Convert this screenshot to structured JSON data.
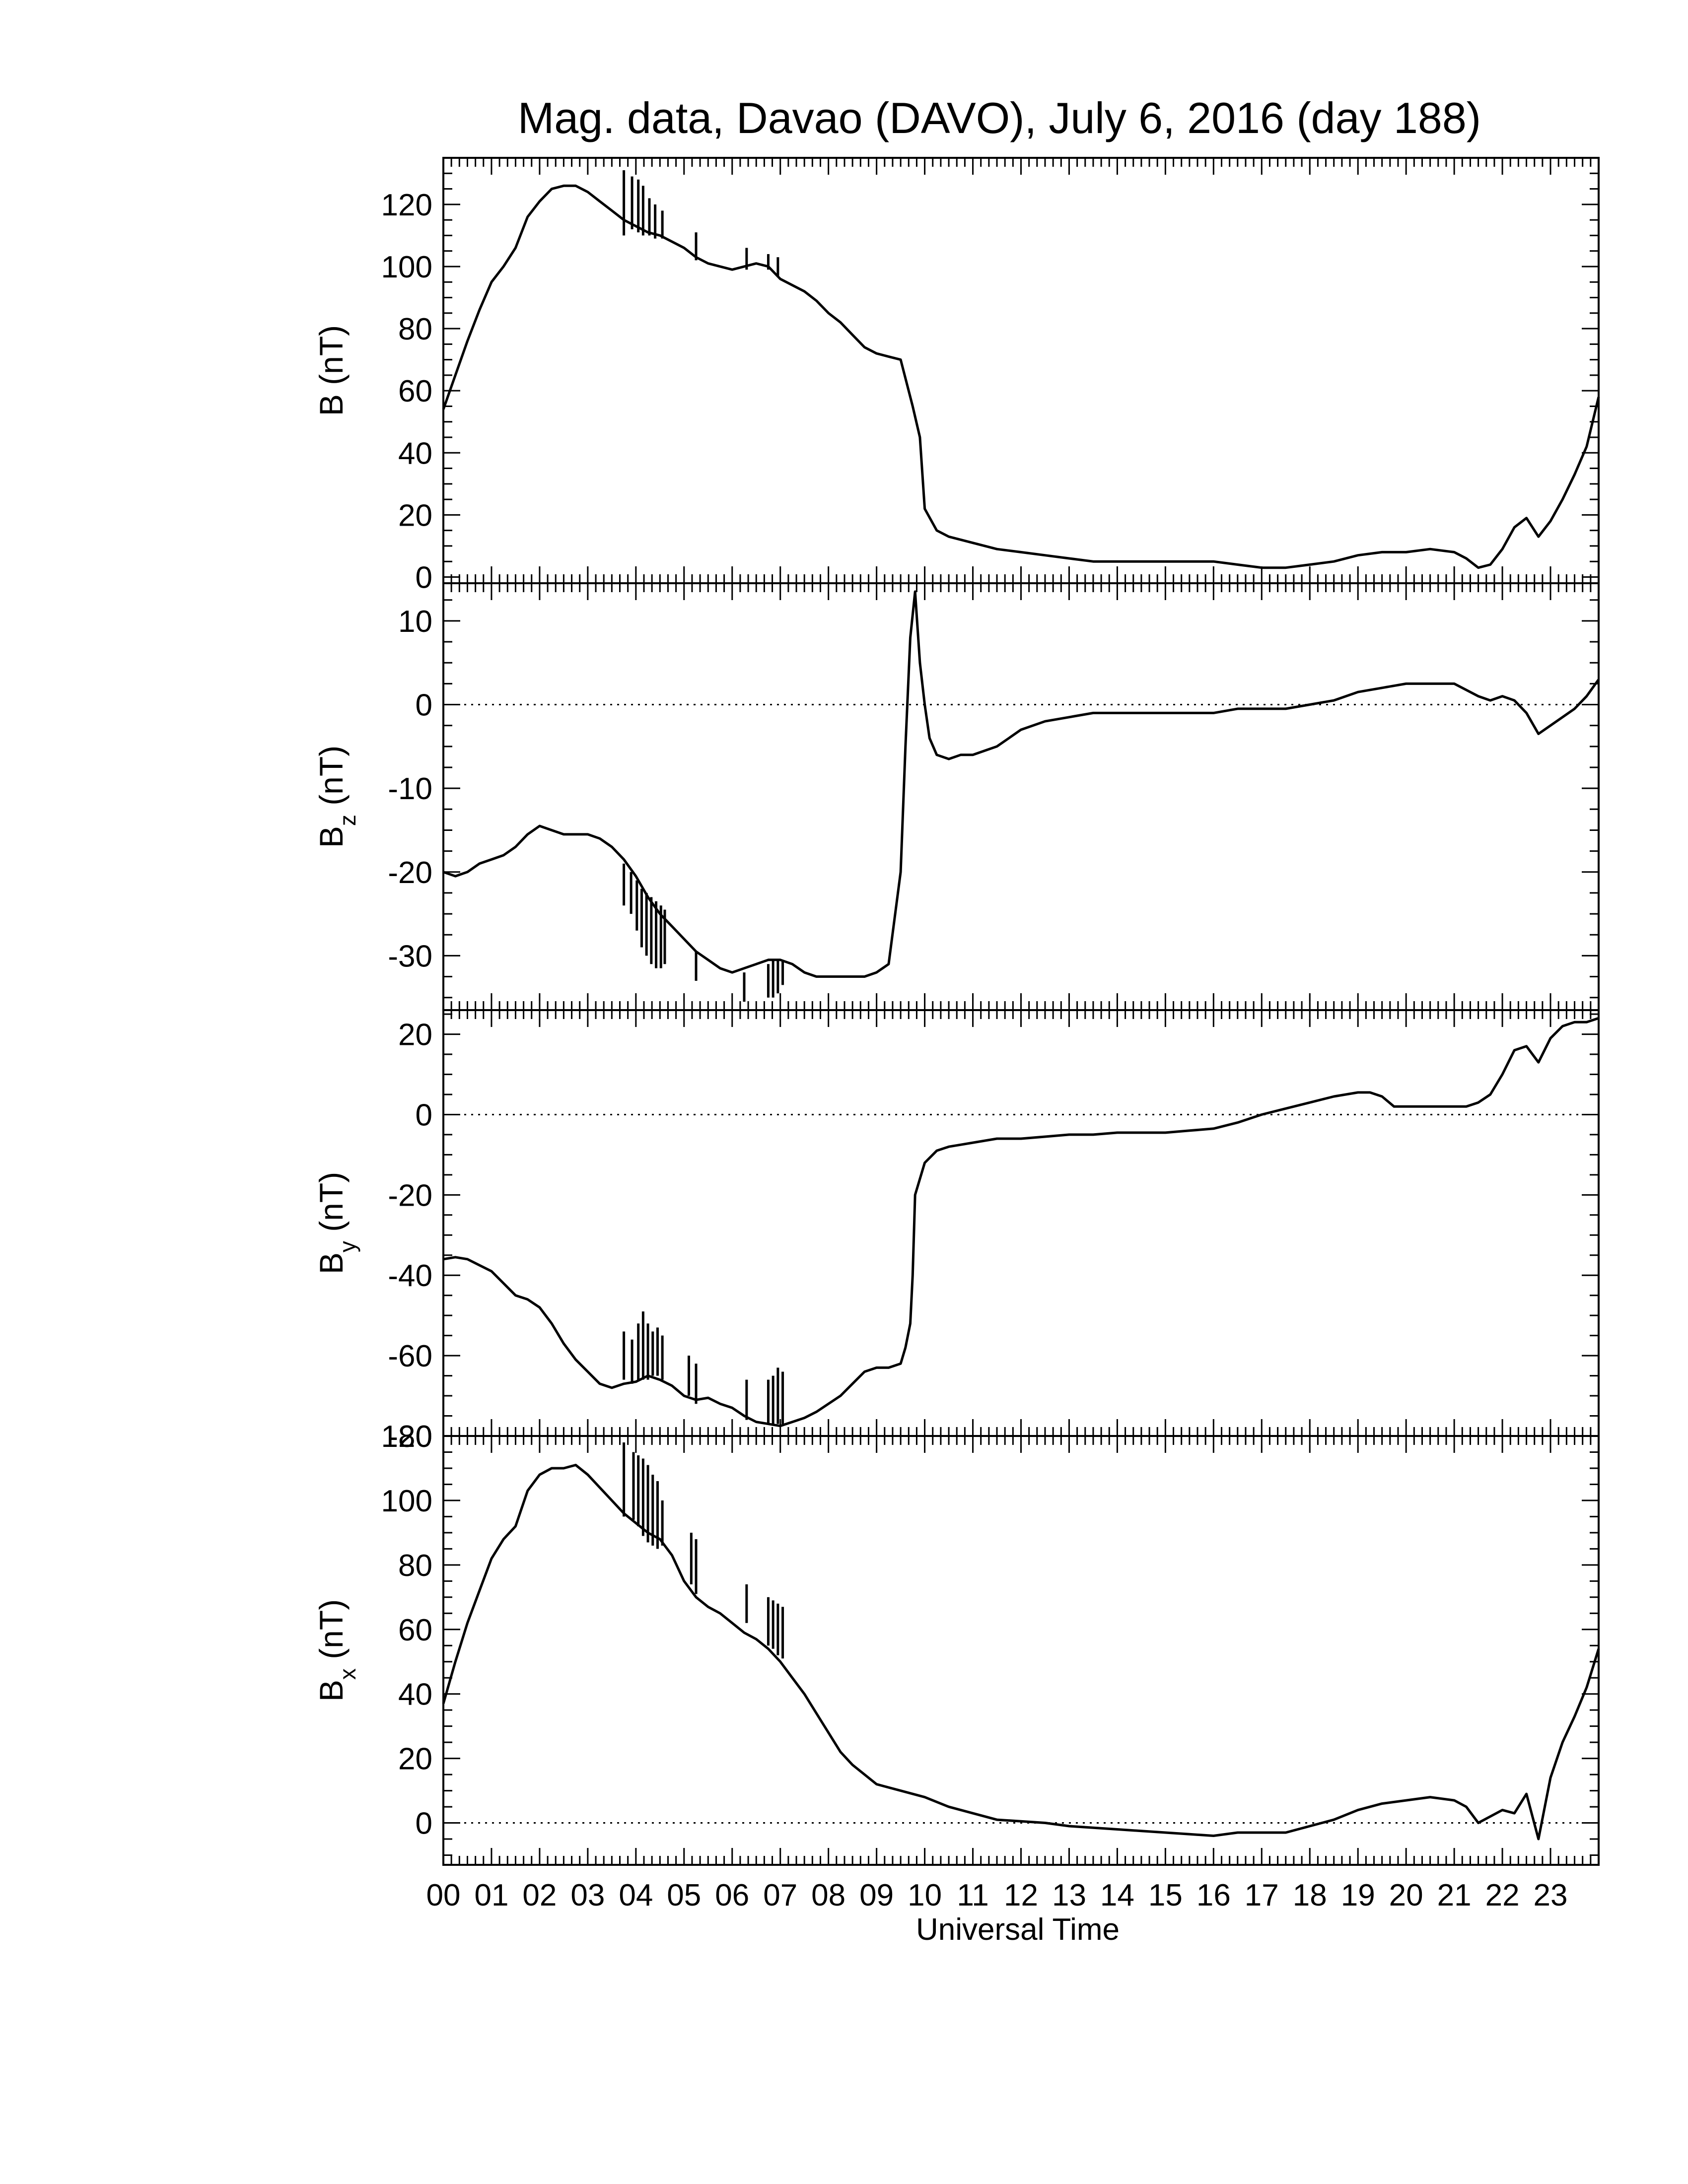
{
  "title": "Mag. data, Davao (DAVO), July 6, 2016 (day 188)",
  "xlabel": "Universal Time",
  "x_tick_labels": [
    "00",
    "01",
    "02",
    "03",
    "04",
    "05",
    "06",
    "07",
    "08",
    "09",
    "10",
    "11",
    "12",
    "13",
    "14",
    "15",
    "16",
    "17",
    "18",
    "19",
    "20",
    "21",
    "22",
    "23"
  ],
  "colors": {
    "line": "#000000",
    "background": "#ffffff"
  },
  "chart_data": [
    {
      "type": "line",
      "panel": "B",
      "ylabel": "B (nT)",
      "xlim": [
        0,
        24
      ],
      "ylim": [
        -2,
        135
      ],
      "yticks": [
        0,
        20,
        40,
        60,
        80,
        100,
        120
      ],
      "zero_line": false,
      "x": [
        0,
        0.25,
        0.5,
        0.75,
        1,
        1.25,
        1.5,
        1.75,
        2,
        2.25,
        2.5,
        2.75,
        3,
        3.25,
        3.5,
        3.75,
        4,
        4.25,
        4.5,
        4.75,
        5,
        5.25,
        5.5,
        5.75,
        6,
        6.25,
        6.5,
        6.75,
        7,
        7.25,
        7.5,
        7.75,
        8,
        8.25,
        8.5,
        8.75,
        9,
        9.25,
        9.5,
        9.75,
        9.9,
        10,
        10.25,
        10.5,
        10.75,
        11,
        11.5,
        12,
        12.5,
        13,
        13.5,
        14,
        14.5,
        15,
        15.5,
        16,
        16.5,
        17,
        17.5,
        18,
        18.5,
        19,
        19.5,
        20,
        20.5,
        21,
        21.25,
        21.5,
        21.75,
        22,
        22.25,
        22.5,
        22.75,
        23,
        23.25,
        23.5,
        23.75,
        24
      ],
      "y": [
        54,
        65,
        76,
        86,
        95,
        100,
        106,
        116,
        121,
        125,
        126,
        126,
        124,
        121,
        118,
        115,
        113,
        111,
        110,
        108,
        106,
        103,
        101,
        100,
        99,
        100,
        101,
        100,
        96,
        94,
        92,
        89,
        85,
        82,
        78,
        74,
        72,
        71,
        70,
        55,
        45,
        22,
        15,
        13,
        12,
        11,
        9,
        8,
        7,
        6,
        5,
        5,
        5,
        5,
        5,
        5,
        4,
        3,
        3,
        4,
        5,
        7,
        8,
        8,
        9,
        8,
        6,
        3,
        4,
        9,
        16,
        19,
        13,
        18,
        25,
        33,
        42,
        58
      ],
      "spikes": [
        {
          "x": 3.75,
          "y1": 110,
          "y2": 131
        },
        {
          "x": 3.92,
          "y1": 112,
          "y2": 129
        },
        {
          "x": 4.05,
          "y1": 111,
          "y2": 128
        },
        {
          "x": 4.15,
          "y1": 110,
          "y2": 126
        },
        {
          "x": 4.28,
          "y1": 110,
          "y2": 122
        },
        {
          "x": 4.4,
          "y1": 109,
          "y2": 120
        },
        {
          "x": 4.55,
          "y1": 109,
          "y2": 118
        },
        {
          "x": 5.25,
          "y1": 102,
          "y2": 111
        },
        {
          "x": 6.3,
          "y1": 99,
          "y2": 106
        },
        {
          "x": 6.75,
          "y1": 99,
          "y2": 104
        },
        {
          "x": 6.95,
          "y1": 97,
          "y2": 103
        }
      ]
    },
    {
      "type": "line",
      "panel": "Bz",
      "ylabel": "B",
      "ylabel_sub": "z",
      "ylabel_unit": " (nT)",
      "xlim": [
        0,
        24
      ],
      "ylim": [
        -36.5,
        14.5
      ],
      "yticks": [
        -30,
        -20,
        -10,
        0,
        10
      ],
      "zero_line": true,
      "x": [
        0,
        0.25,
        0.5,
        0.75,
        1,
        1.25,
        1.5,
        1.75,
        2,
        2.25,
        2.5,
        2.75,
        3,
        3.25,
        3.5,
        3.75,
        4,
        4.25,
        4.5,
        4.75,
        5,
        5.25,
        5.5,
        5.75,
        6,
        6.25,
        6.5,
        6.75,
        7,
        7.25,
        7.5,
        7.75,
        8,
        8.25,
        8.5,
        8.75,
        9,
        9.25,
        9.5,
        9.6,
        9.7,
        9.8,
        9.9,
        10,
        10.1,
        10.25,
        10.5,
        10.75,
        11,
        11.25,
        11.5,
        11.75,
        12,
        12.5,
        13,
        13.5,
        14,
        14.5,
        15,
        15.5,
        16,
        16.5,
        17,
        17.5,
        18,
        18.5,
        19,
        19.5,
        20,
        20.5,
        21,
        21.5,
        21.75,
        22,
        22.25,
        22.5,
        22.75,
        23,
        23.25,
        23.5,
        23.75,
        24
      ],
      "y": [
        -20,
        -20.5,
        -20,
        -19,
        -18.5,
        -18,
        -17,
        -15.5,
        -14.5,
        -15,
        -15.5,
        -15.5,
        -15.5,
        -16,
        -17,
        -18.5,
        -20.5,
        -23,
        -25,
        -26.5,
        -28,
        -29.5,
        -30.5,
        -31.5,
        -32,
        -31.5,
        -31,
        -30.5,
        -30.5,
        -31,
        -32,
        -32.5,
        -32.5,
        -32.5,
        -32.5,
        -32.5,
        -32,
        -31,
        -20,
        -5,
        8,
        13.5,
        5,
        0,
        -4,
        -6,
        -6.5,
        -6,
        -6,
        -5.5,
        -5,
        -4,
        -3,
        -2,
        -1.5,
        -1,
        -1,
        -1,
        -1,
        -1,
        -1,
        -0.5,
        -0.5,
        -0.5,
        0,
        0.5,
        1.5,
        2,
        2.5,
        2.5,
        2.5,
        1,
        0.5,
        1,
        0.5,
        -1,
        -3.5,
        -2.5,
        -1.5,
        -0.5,
        1,
        3
      ],
      "spikes": [
        {
          "x": 3.75,
          "y1": -19,
          "y2": -24
        },
        {
          "x": 3.9,
          "y1": -20,
          "y2": -25
        },
        {
          "x": 4.02,
          "y1": -21,
          "y2": -27
        },
        {
          "x": 4.12,
          "y1": -22,
          "y2": -29
        },
        {
          "x": 4.22,
          "y1": -22.5,
          "y2": -30
        },
        {
          "x": 4.32,
          "y1": -23,
          "y2": -31
        },
        {
          "x": 4.42,
          "y1": -23.5,
          "y2": -31.5
        },
        {
          "x": 4.52,
          "y1": -24,
          "y2": -31.5
        },
        {
          "x": 4.6,
          "y1": -24.5,
          "y2": -31
        },
        {
          "x": 5.25,
          "y1": -29.5,
          "y2": -33
        },
        {
          "x": 6.25,
          "y1": -32,
          "y2": -35.5
        },
        {
          "x": 6.75,
          "y1": -31,
          "y2": -35
        },
        {
          "x": 6.85,
          "y1": -30.5,
          "y2": -35
        },
        {
          "x": 6.95,
          "y1": -30.5,
          "y2": -34.5
        },
        {
          "x": 7.05,
          "y1": -30.5,
          "y2": -33.5
        }
      ]
    },
    {
      "type": "line",
      "panel": "By",
      "ylabel": "B",
      "ylabel_sub": "y",
      "ylabel_unit": " (nT)",
      "xlim": [
        0,
        24
      ],
      "ylim": [
        -80,
        26
      ],
      "yticks": [
        -80,
        -60,
        -40,
        -20,
        0,
        20
      ],
      "zero_line": true,
      "x": [
        0,
        0.25,
        0.5,
        0.75,
        1,
        1.25,
        1.5,
        1.75,
        2,
        2.25,
        2.5,
        2.75,
        3,
        3.25,
        3.5,
        3.75,
        4,
        4.25,
        4.5,
        4.75,
        5,
        5.25,
        5.5,
        5.75,
        6,
        6.25,
        6.5,
        6.75,
        7,
        7.25,
        7.5,
        7.75,
        8,
        8.25,
        8.5,
        8.75,
        9,
        9.25,
        9.5,
        9.6,
        9.7,
        9.75,
        9.8,
        10,
        10.25,
        10.5,
        10.75,
        11,
        11.5,
        12,
        12.5,
        13,
        13.5,
        14,
        14.5,
        15,
        15.5,
        16,
        16.5,
        17,
        17.5,
        18,
        18.5,
        19,
        19.25,
        19.5,
        19.75,
        20,
        20.5,
        21,
        21.25,
        21.5,
        21.75,
        22,
        22.25,
        22.5,
        22.75,
        23,
        23.25,
        23.5,
        23.75,
        24
      ],
      "y": [
        -36,
        -35.5,
        -36,
        -37.5,
        -39,
        -42,
        -45,
        -46,
        -48,
        -52,
        -57,
        -61,
        -64,
        -67,
        -68,
        -67,
        -66.5,
        -65,
        -66,
        -67.5,
        -70,
        -71,
        -70.5,
        -72,
        -73,
        -75,
        -76.5,
        -77,
        -77.5,
        -76.5,
        -75.5,
        -74,
        -72,
        -70,
        -67,
        -64,
        -63,
        -63,
        -62,
        -58,
        -52,
        -40,
        -20,
        -12,
        -9,
        -8,
        -7.5,
        -7,
        -6,
        -6,
        -5.5,
        -5,
        -5,
        -4.5,
        -4.5,
        -4.5,
        -4,
        -3.5,
        -2,
        0,
        1.5,
        3,
        4.5,
        5.5,
        5.5,
        4.5,
        2,
        2,
        2,
        2,
        2,
        3,
        5,
        10,
        16,
        17,
        13,
        19,
        22,
        23,
        23,
        24
      ],
      "spikes": [
        {
          "x": 3.75,
          "y1": -66,
          "y2": -54
        },
        {
          "x": 3.92,
          "y1": -67,
          "y2": -56
        },
        {
          "x": 4.05,
          "y1": -66,
          "y2": -52
        },
        {
          "x": 4.15,
          "y1": -66,
          "y2": -49
        },
        {
          "x": 4.25,
          "y1": -66,
          "y2": -52
        },
        {
          "x": 4.35,
          "y1": -65,
          "y2": -54
        },
        {
          "x": 4.45,
          "y1": -65,
          "y2": -53
        },
        {
          "x": 4.55,
          "y1": -66,
          "y2": -55
        },
        {
          "x": 5.1,
          "y1": -70,
          "y2": -60
        },
        {
          "x": 5.25,
          "y1": -72,
          "y2": -62
        },
        {
          "x": 6.3,
          "y1": -76,
          "y2": -66
        },
        {
          "x": 6.75,
          "y1": -77,
          "y2": -66
        },
        {
          "x": 6.85,
          "y1": -77,
          "y2": -65
        },
        {
          "x": 6.95,
          "y1": -77,
          "y2": -63
        },
        {
          "x": 7.05,
          "y1": -77,
          "y2": -64
        }
      ]
    },
    {
      "type": "line",
      "panel": "Bx",
      "ylabel": "B",
      "ylabel_sub": "x",
      "ylabel_unit": " (nT)",
      "xlim": [
        0,
        24
      ],
      "ylim": [
        -13,
        120
      ],
      "yticks": [
        0,
        20,
        40,
        60,
        80,
        100,
        120
      ],
      "zero_line": true,
      "x": [
        0,
        0.25,
        0.5,
        0.75,
        1,
        1.25,
        1.5,
        1.75,
        2,
        2.25,
        2.5,
        2.75,
        3,
        3.25,
        3.5,
        3.75,
        4,
        4.25,
        4.5,
        4.75,
        5,
        5.25,
        5.5,
        5.75,
        6,
        6.25,
        6.5,
        6.75,
        7,
        7.25,
        7.5,
        7.75,
        8,
        8.25,
        8.5,
        8.75,
        9,
        9.5,
        10,
        10.5,
        11,
        11.5,
        12,
        12.5,
        13,
        13.5,
        14,
        14.5,
        15,
        15.5,
        16,
        16.5,
        17,
        17.5,
        18,
        18.5,
        19,
        19.5,
        20,
        20.5,
        21,
        21.25,
        21.5,
        21.75,
        22,
        22.25,
        22.5,
        22.75,
        23,
        23.25,
        23.5,
        23.75,
        24
      ],
      "y": [
        37,
        50,
        62,
        72,
        82,
        88,
        92,
        103,
        108,
        110,
        110,
        111,
        108,
        104,
        100,
        96,
        93,
        90,
        88,
        83,
        75,
        70,
        67,
        65,
        62,
        59,
        57,
        54,
        50,
        45,
        40,
        34,
        28,
        22,
        18,
        15,
        12,
        10,
        8,
        5,
        3,
        1,
        0.5,
        0,
        -1,
        -1.5,
        -2,
        -2.5,
        -3,
        -3.5,
        -4,
        -3,
        -3,
        -3,
        -1,
        1,
        4,
        6,
        7,
        8,
        7,
        5,
        0,
        2,
        4,
        3,
        9,
        -5,
        14,
        25,
        33,
        42,
        54
      ],
      "spikes": [
        {
          "x": 3.75,
          "y1": 95,
          "y2": 118
        },
        {
          "x": 3.95,
          "y1": 94,
          "y2": 115
        },
        {
          "x": 4.05,
          "y1": 92,
          "y2": 114
        },
        {
          "x": 4.15,
          "y1": 89,
          "y2": 113
        },
        {
          "x": 4.25,
          "y1": 87,
          "y2": 111
        },
        {
          "x": 4.35,
          "y1": 86,
          "y2": 108
        },
        {
          "x": 4.45,
          "y1": 85,
          "y2": 106
        },
        {
          "x": 4.55,
          "y1": 86,
          "y2": 100
        },
        {
          "x": 5.15,
          "y1": 74,
          "y2": 90
        },
        {
          "x": 5.25,
          "y1": 71,
          "y2": 88
        },
        {
          "x": 6.3,
          "y1": 62,
          "y2": 74
        },
        {
          "x": 6.75,
          "y1": 55,
          "y2": 70
        },
        {
          "x": 6.85,
          "y1": 54,
          "y2": 69
        },
        {
          "x": 6.95,
          "y1": 52,
          "y2": 68
        },
        {
          "x": 7.05,
          "y1": 51,
          "y2": 67
        }
      ]
    }
  ]
}
